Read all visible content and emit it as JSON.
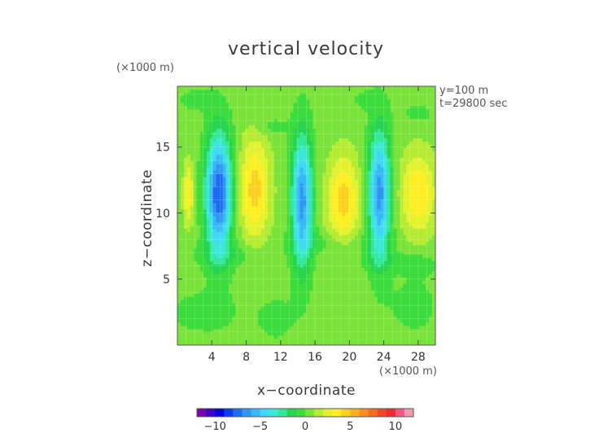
{
  "chart_data": {
    "type": "heatmap",
    "title": "vertical velocity",
    "xlabel": "x−coordinate",
    "ylabel": "z−coordinate",
    "x_unit": "(×1000 m)",
    "y_unit": "(×1000 m)",
    "annotations": [
      "y=100 m",
      "t=29800 sec"
    ],
    "xlim": [
      0,
      30
    ],
    "ylim": [
      0,
      19.6
    ],
    "x_ticks": [
      "4",
      "8",
      "12",
      "16",
      "20",
      "24",
      "28"
    ],
    "y_ticks": [
      "5",
      "10",
      "15"
    ],
    "background_value": 0.5,
    "colorbar": {
      "range": [
        -12,
        12
      ],
      "tick_labels": [
        "−10",
        "−5",
        "0",
        "5",
        "10"
      ],
      "colors": [
        "#7a00b0",
        "#3c00c8",
        "#0000e0",
        "#0a3cf0",
        "#1e6af2",
        "#2f95f6",
        "#38b8f6",
        "#40d8f8",
        "#3ce8d8",
        "#33e89a",
        "#26d44e",
        "#3cdc3c",
        "#7ae33a",
        "#b5ec33",
        "#e4f22e",
        "#ffee22",
        "#fcd020",
        "#f6b21e",
        "#f69020",
        "#f46e22",
        "#f24a28",
        "#f02a30",
        "#ee5a80",
        "#f29aaa"
      ]
    },
    "features": [
      {
        "kind": "updraft",
        "x": 1.3,
        "z": 11.5,
        "rx": 0.6,
        "rz": 2.3,
        "peak": 3.0
      },
      {
        "kind": "downdraft",
        "x": 4.8,
        "z": 11.5,
        "rx": 1.5,
        "rz": 4.5,
        "peak": -8.5
      },
      {
        "kind": "updraft",
        "x": 9.0,
        "z": 11.8,
        "rx": 1.7,
        "rz": 3.8,
        "peak": 4.0
      },
      {
        "kind": "downdraft",
        "x": 14.5,
        "z": 11.0,
        "rx": 1.2,
        "rz": 5.0,
        "peak": -7.0
      },
      {
        "kind": "updraft",
        "x": 19.3,
        "z": 11.0,
        "rx": 1.8,
        "rz": 3.2,
        "peak": 4.0
      },
      {
        "kind": "downdraft",
        "x": 23.5,
        "z": 11.5,
        "rx": 1.3,
        "rz": 4.8,
        "peak": -7.0
      },
      {
        "kind": "updraft",
        "x": 28.0,
        "z": 11.5,
        "rx": 2.0,
        "rz": 3.0,
        "peak": 3.5
      },
      {
        "kind": "weak_down",
        "x": 2.0,
        "z": 18.6,
        "rx": 2.0,
        "rz": 0.9,
        "peak": -0.9
      },
      {
        "kind": "weak_down",
        "x": 11.0,
        "z": 16.6,
        "rx": 2.0,
        "rz": 0.7,
        "peak": -0.9
      },
      {
        "kind": "weak_down",
        "x": 22.0,
        "z": 18.6,
        "rx": 1.8,
        "rz": 0.7,
        "peak": -0.9
      },
      {
        "kind": "weak_down",
        "x": 28.0,
        "z": 17.6,
        "rx": 2.0,
        "rz": 0.8,
        "peak": -0.9
      },
      {
        "kind": "weak_down",
        "x": 6.0,
        "z": 6.8,
        "rx": 5.0,
        "rz": 1.0,
        "peak": -1.0
      },
      {
        "kind": "weak_down",
        "x": 18.0,
        "z": 7.8,
        "rx": 5.0,
        "rz": 0.8,
        "peak": -0.9
      },
      {
        "kind": "weak_down",
        "x": 23.5,
        "z": 6.5,
        "rx": 3.0,
        "rz": 0.8,
        "peak": -0.9
      },
      {
        "kind": "weak_down",
        "x": 28.0,
        "z": 6.2,
        "rx": 2.5,
        "rz": 1.0,
        "peak": -0.9
      },
      {
        "kind": "weak_down",
        "x": 3.0,
        "z": 2.5,
        "rx": 4.5,
        "rz": 1.8,
        "peak": -0.9
      },
      {
        "kind": "weak_down",
        "x": 11.5,
        "z": 2.0,
        "rx": 2.5,
        "rz": 2.0,
        "peak": -0.8
      },
      {
        "kind": "weak_down",
        "x": 27.5,
        "z": 3.0,
        "rx": 3.0,
        "rz": 2.2,
        "peak": -0.9
      }
    ]
  }
}
